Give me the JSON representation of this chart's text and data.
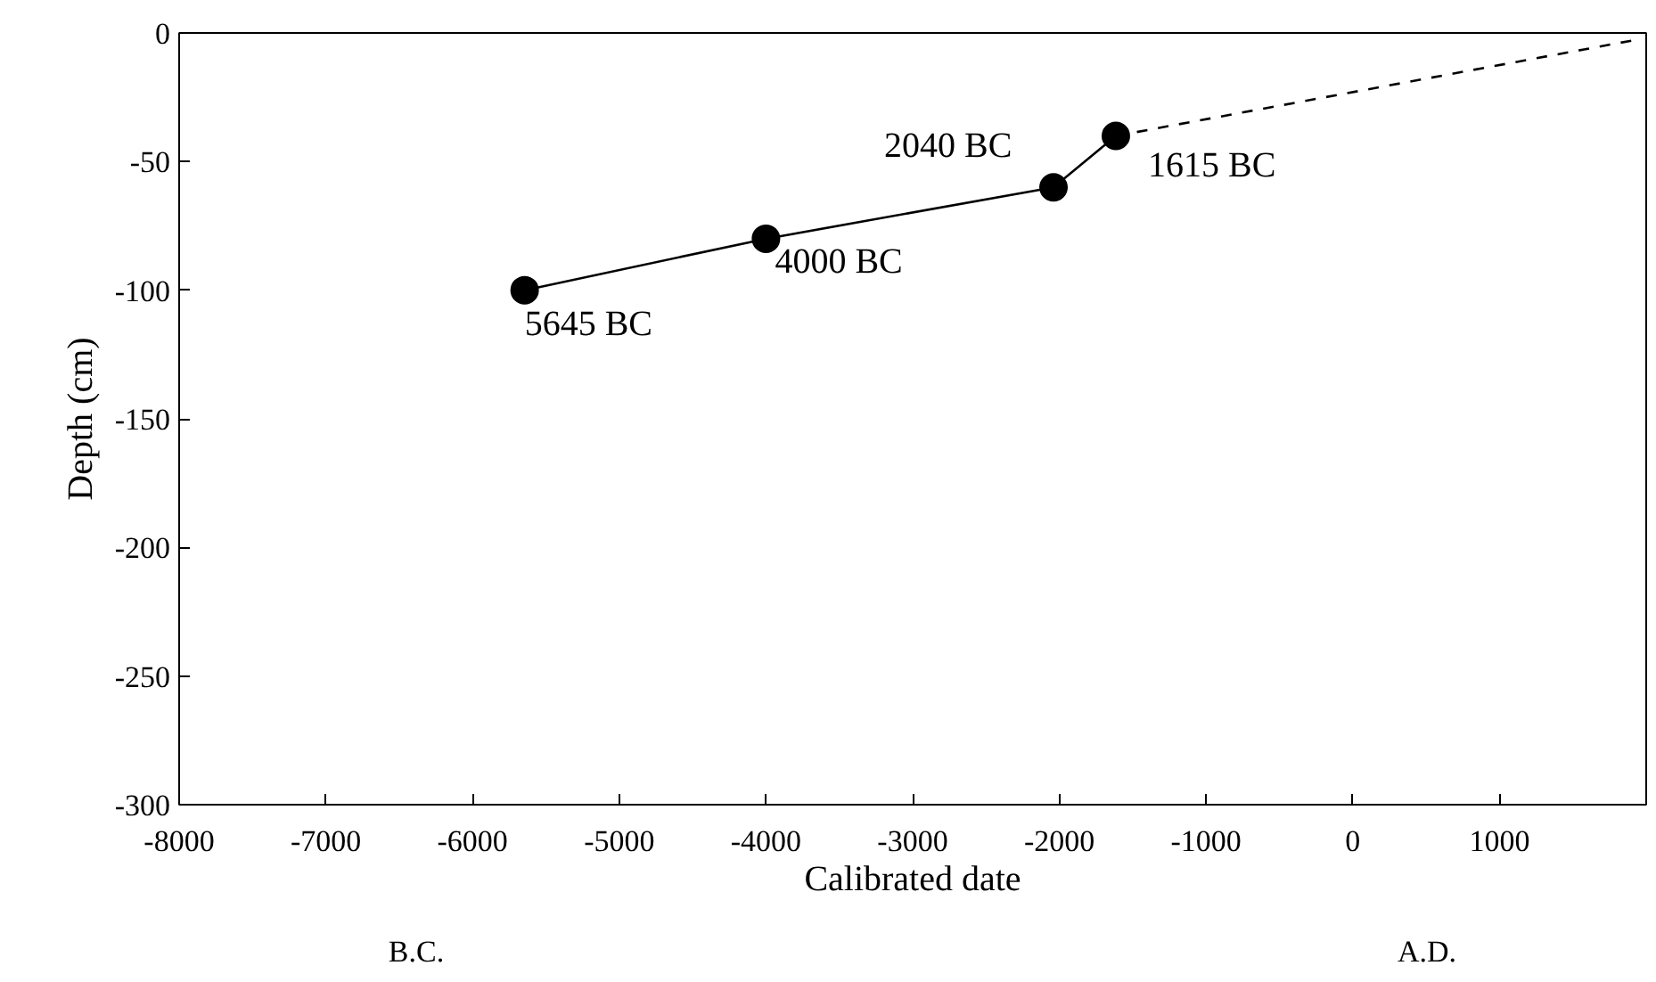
{
  "chart_data": {
    "type": "line",
    "xlabel": "Calibrated date",
    "ylabel": "Depth (cm)",
    "xlim": [
      -8000,
      2000
    ],
    "ylim": [
      -300,
      0
    ],
    "xticks": [
      -8000,
      -7000,
      -6000,
      -5000,
      -4000,
      -3000,
      -2000,
      -1000,
      0,
      1000
    ],
    "yticks": [
      -300,
      -250,
      -200,
      -150,
      -100,
      -50,
      0
    ],
    "grid": false,
    "series": [
      {
        "color": "#000000",
        "x": [
          -5645,
          -4000,
          -2040,
          -1615
        ],
        "values": [
          -100,
          -80,
          -60,
          -40
        ],
        "marker": "circle",
        "line_style": "solid"
      },
      {
        "color": "#000000",
        "x": [
          -1615,
          1900
        ],
        "values": [
          -40,
          -3
        ],
        "marker": "none",
        "line_style": "dashed"
      }
    ],
    "annotations": [
      {
        "text": "5645 BC",
        "x": -5645,
        "y": -100
      },
      {
        "text": "4000 BC",
        "x": -4000,
        "y": -80
      },
      {
        "text": "2040 BC",
        "x": -2040,
        "y": -60
      },
      {
        "text": "1615 BC",
        "x": -1615,
        "y": -40
      },
      "B.C.",
      "A.D."
    ]
  }
}
